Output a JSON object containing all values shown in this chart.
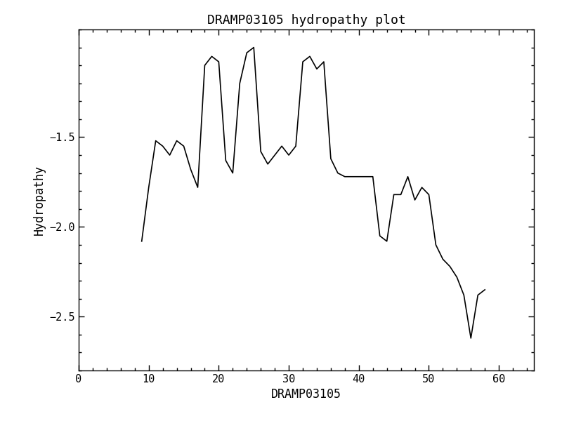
{
  "title": "DRAMP03105 hydropathy plot",
  "xlabel": "DRAMP03105",
  "ylabel": "Hydropathy",
  "xlim": [
    0,
    65
  ],
  "ylim": [
    -2.8,
    -0.9
  ],
  "xticks": [
    0,
    10,
    20,
    30,
    40,
    50,
    60
  ],
  "yticks": [
    -2.5,
    -2.0,
    -1.5
  ],
  "background_color": "#ffffff",
  "line_color": "#000000",
  "line_width": 1.2,
  "x": [
    9,
    10,
    11,
    12,
    13,
    14,
    15,
    16,
    17,
    18,
    19,
    20,
    21,
    22,
    23,
    24,
    25,
    26,
    27,
    28,
    29,
    30,
    31,
    32,
    33,
    34,
    35,
    36,
    37,
    38,
    39,
    40,
    41,
    42,
    43,
    44,
    45,
    46,
    47,
    48,
    49,
    50,
    51,
    52,
    53,
    54,
    55,
    56,
    57,
    58
  ],
  "y": [
    -2.08,
    -1.78,
    -1.52,
    -1.55,
    -1.6,
    -1.52,
    -1.55,
    -1.68,
    -1.78,
    -1.1,
    -1.05,
    -1.08,
    -1.63,
    -1.7,
    -1.2,
    -1.03,
    -1.0,
    -1.58,
    -1.65,
    -1.6,
    -1.55,
    -1.6,
    -1.55,
    -1.08,
    -1.05,
    -1.12,
    -1.08,
    -1.62,
    -1.7,
    -1.72,
    -1.72,
    -1.72,
    -1.72,
    -1.72,
    -2.05,
    -2.08,
    -1.82,
    -1.82,
    -1.72,
    -1.85,
    -1.78,
    -1.82,
    -2.1,
    -2.18,
    -2.22,
    -2.28,
    -2.38,
    -2.62,
    -2.38,
    -2.35
  ],
  "figsize": [
    8.0,
    6.0
  ],
  "dpi": 100,
  "font_size_title": 13,
  "font_size_labels": 12,
  "font_size_ticks": 11
}
